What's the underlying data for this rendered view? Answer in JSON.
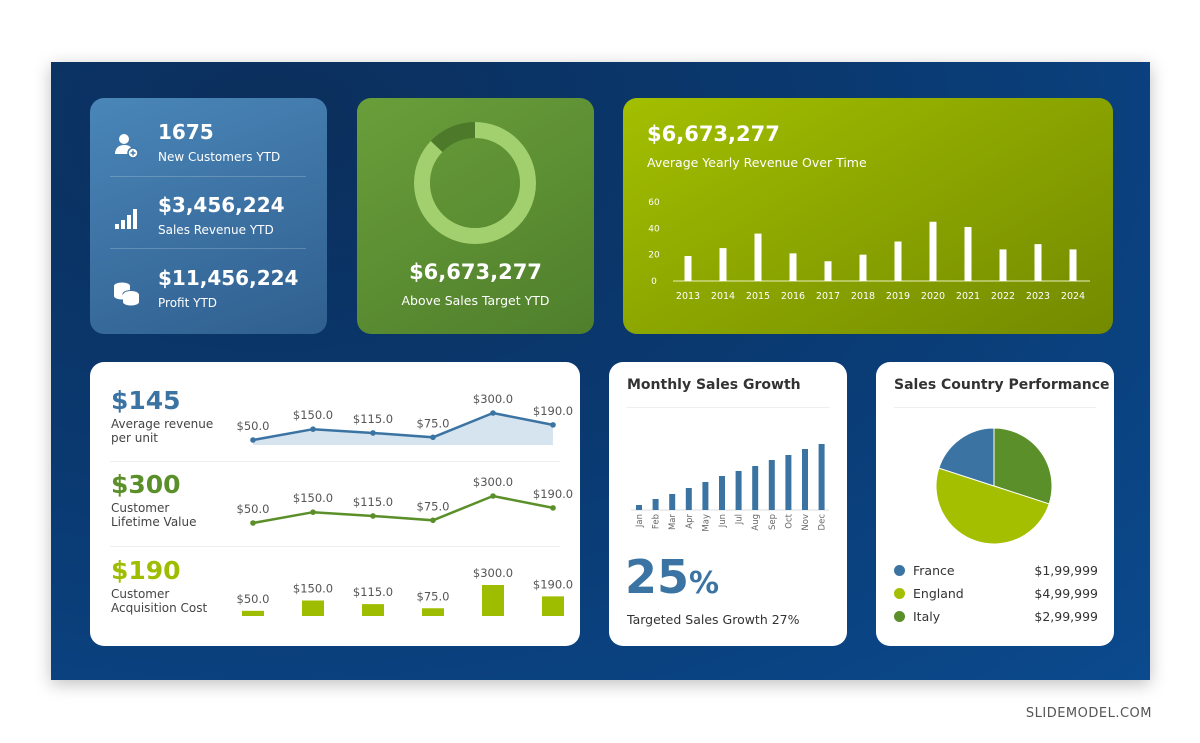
{
  "kpis": [
    {
      "value": "1675",
      "label": "New Customers YTD",
      "icon": "user-add-icon"
    },
    {
      "value": "$3,456,224",
      "label": "Sales Revenue YTD",
      "icon": "bar-signal-icon"
    },
    {
      "value": "$11,456,224",
      "label": "Profit YTD",
      "icon": "coins-icon"
    }
  ],
  "target": {
    "value": "$6,673,277",
    "label": "Above Sales Target YTD",
    "donut_percent": 87
  },
  "yearly": {
    "value": "$6,673,277",
    "label": "Average Yearly Revenue Over Time"
  },
  "metrics": [
    {
      "value": "$145",
      "label1": "Average revenue",
      "label2": "per unit",
      "color": "#3b74a3"
    },
    {
      "value": "$300",
      "label1": "Customer",
      "label2": "Lifetime Value",
      "color": "#5b8f2a"
    },
    {
      "value": "$190",
      "label1": "Customer",
      "label2": "Acquisition Cost",
      "color": "#9fbd00"
    }
  ],
  "monthly": {
    "title": "Monthly Sales Growth",
    "big": "25",
    "pct": "%",
    "sub": "Targeted Sales Growth 27%"
  },
  "country": {
    "title": "Sales Country Performance",
    "items": [
      {
        "name": "France",
        "value": "$1,99,999",
        "color": "#3b74a3"
      },
      {
        "name": "England",
        "value": "$4,99,999",
        "color": "#a3bf00"
      },
      {
        "name": "Italy",
        "value": "$2,99,999",
        "color": "#5b8f2a"
      }
    ]
  },
  "footer": "SLIDEMODEL.COM",
  "chart_data": [
    {
      "type": "bar",
      "categories": [
        "2013",
        "2014",
        "2015",
        "2016",
        "2017",
        "2018",
        "2019",
        "2020",
        "2021",
        "2022",
        "2023",
        "2024"
      ],
      "values": [
        19,
        25,
        36,
        21,
        15,
        20,
        30,
        45,
        41,
        24,
        28,
        24
      ],
      "ylim": [
        0,
        60
      ],
      "yticks": [
        "0",
        "20",
        "40",
        "60"
      ]
    },
    {
      "type": "area",
      "categories": [
        "1",
        "2",
        "3",
        "4",
        "5",
        "6"
      ],
      "values": [
        50,
        150,
        115,
        75,
        300,
        190
      ],
      "labels": [
        "$50.0",
        "$150.0",
        "$115.0",
        "$75.0",
        "$300.0",
        "$190.0"
      ],
      "color": "#3b74a3"
    },
    {
      "type": "line",
      "categories": [
        "1",
        "2",
        "3",
        "4",
        "5",
        "6"
      ],
      "values": [
        50,
        150,
        115,
        75,
        300,
        190
      ],
      "labels": [
        "$50.0",
        "$150.0",
        "$115.0",
        "$75.0",
        "$300.0",
        "$190.0"
      ],
      "color": "#5b8f2a"
    },
    {
      "type": "bar",
      "categories": [
        "1",
        "2",
        "3",
        "4",
        "5",
        "6"
      ],
      "values": [
        50,
        150,
        115,
        75,
        300,
        190
      ],
      "labels": [
        "$50.0",
        "$150.0",
        "$115.0",
        "$75.0",
        "$300.0",
        "$190.0"
      ],
      "color": "#9fbd00"
    },
    {
      "type": "bar",
      "categories": [
        "Jan",
        "Feb",
        "Mar",
        "Apr",
        "May",
        "Jun",
        "Jul",
        "Aug",
        "Sep",
        "Oct",
        "Nov",
        "Dec"
      ],
      "values": [
        5,
        11,
        16,
        22,
        28,
        34,
        39,
        44,
        50,
        55,
        61,
        66
      ],
      "color": "#3b74a3"
    },
    {
      "type": "pie",
      "categories": [
        "France",
        "England",
        "Italy"
      ],
      "values": [
        20,
        50,
        30
      ]
    }
  ]
}
